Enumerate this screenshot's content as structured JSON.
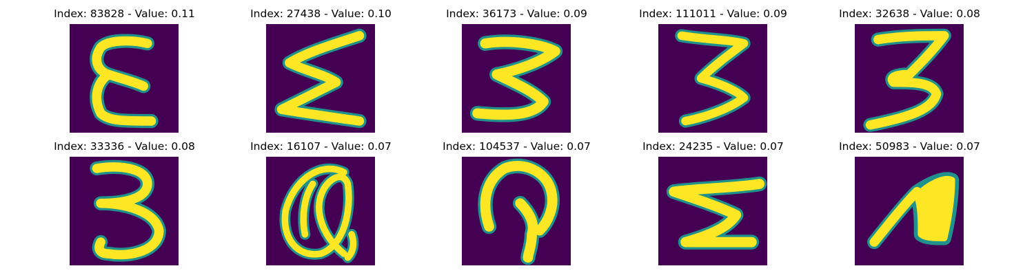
{
  "colors": {
    "background": "#440154",
    "edge": "#21918c",
    "stroke": "#fde725",
    "stroke_mid": "#b5de2b"
  },
  "panels": [
    {
      "title": "Index: 83828 - Value: 0.11",
      "glyph": "epsilon"
    },
    {
      "title": "Index: 27438 - Value: 0.10",
      "glyph": "sigma"
    },
    {
      "title": "Index: 36173 - Value: 0.09",
      "glyph": "three-wide"
    },
    {
      "title": "Index: 111011 - Value: 0.09",
      "glyph": "three-angular"
    },
    {
      "title": "Index: 32638 - Value: 0.08",
      "glyph": "three-flat-top"
    },
    {
      "title": "Index: 33336 - Value: 0.08",
      "glyph": "three-round"
    },
    {
      "title": "Index: 16107 - Value: 0.07",
      "glyph": "loop-a"
    },
    {
      "title": "Index: 104537 - Value: 0.07",
      "glyph": "hook"
    },
    {
      "title": "Index: 24235 - Value: 0.07",
      "glyph": "five-z"
    },
    {
      "title": "Index: 50983 - Value: 0.07",
      "glyph": "leaf"
    }
  ]
}
